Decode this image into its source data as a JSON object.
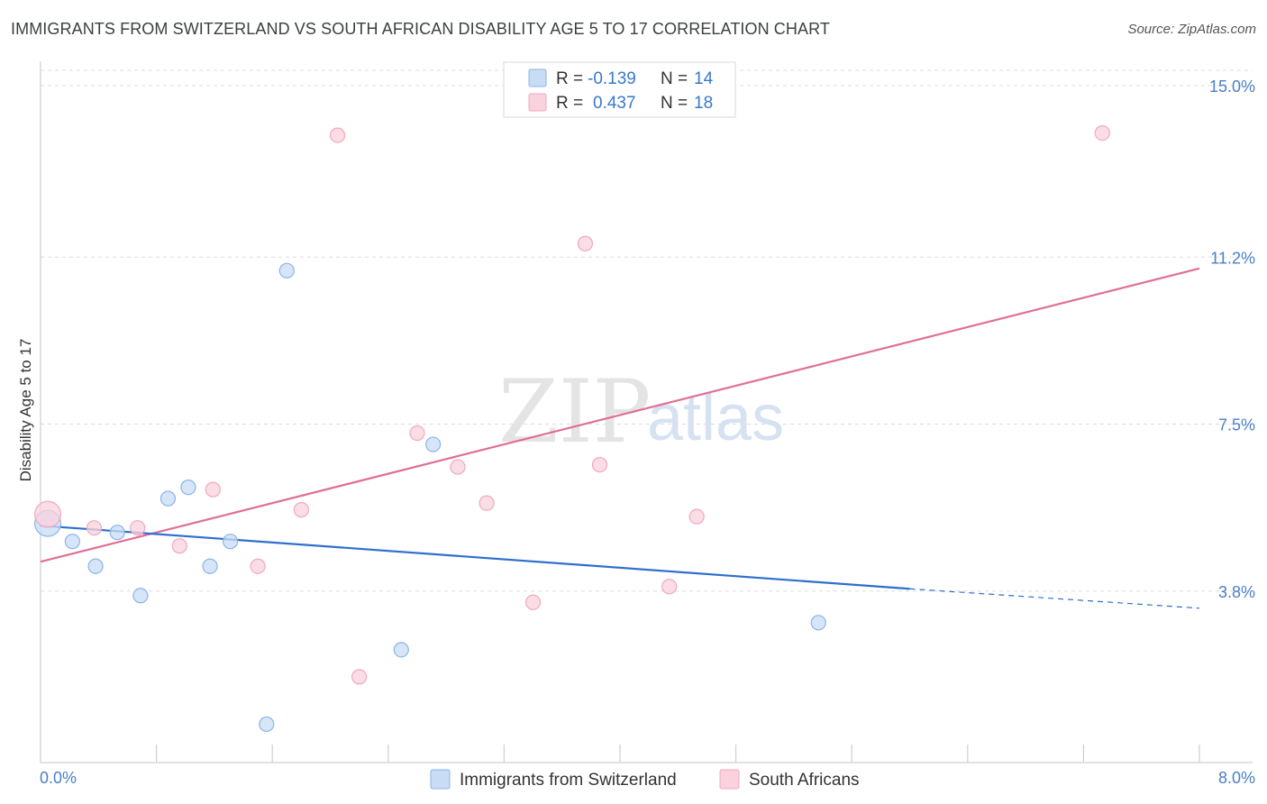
{
  "header": {
    "title": "IMMIGRANTS FROM SWITZERLAND VS SOUTH AFRICAN DISABILITY AGE 5 TO 17 CORRELATION CHART",
    "source": "Source: ZipAtlas.com"
  },
  "chart_data": {
    "type": "scatter",
    "title": "IMMIGRANTS FROM SWITZERLAND VS SOUTH AFRICAN DISABILITY AGE 5 TO 17 CORRELATION CHART",
    "xlabel": "",
    "ylabel": "Disability Age 5 to 17",
    "xlim": [
      0.0,
      8.0
    ],
    "ylim": [
      0.0,
      15.5
    ],
    "x_tick_labels": {
      "min": "0.0%",
      "max": "8.0%"
    },
    "y_ticks": [
      {
        "value": 3.8,
        "label": "3.8%"
      },
      {
        "value": 7.5,
        "label": "7.5%"
      },
      {
        "value": 11.2,
        "label": "11.2%"
      },
      {
        "value": 15.0,
        "label": "15.0%"
      }
    ],
    "grid": true,
    "watermark": {
      "zip": "ZIP",
      "atlas": "atlas"
    },
    "legend": {
      "placement": "top-center",
      "rows": [
        {
          "r_label": "R =",
          "r_value": "-0.139",
          "n_label": "N =",
          "n_value": "14"
        },
        {
          "r_label": "R =",
          "r_value": "0.437",
          "n_label": "N =",
          "n_value": "18"
        }
      ]
    },
    "series": [
      {
        "name": "Immigrants from Switzerland",
        "color": "#8ab4e8",
        "fill": "#c9dcf5",
        "line_color": "#2f6fce",
        "points": [
          [
            0.05,
            5.3,
            1.8
          ],
          [
            0.22,
            4.9,
            1
          ],
          [
            0.38,
            4.35,
            1
          ],
          [
            0.53,
            5.1,
            1
          ],
          [
            0.69,
            3.7,
            1
          ],
          [
            0.88,
            5.85,
            1
          ],
          [
            1.02,
            6.1,
            1
          ],
          [
            1.17,
            4.35,
            1
          ],
          [
            1.31,
            4.9,
            1
          ],
          [
            1.7,
            10.9,
            1
          ],
          [
            1.56,
            0.85,
            1
          ],
          [
            2.49,
            2.5,
            1
          ],
          [
            2.71,
            7.05,
            1
          ],
          [
            5.37,
            3.1,
            1
          ]
        ],
        "trend": {
          "x0": 0.0,
          "y0": 5.25,
          "x1": 6.0,
          "y1": 3.85,
          "x_dash_end": 8.0,
          "y_dash_end": 3.42
        }
      },
      {
        "name": "South Africans",
        "color": "#f2a7bd",
        "fill": "#f9d2dd",
        "line_color": "#e06f95",
        "points": [
          [
            0.05,
            5.5,
            1.8
          ],
          [
            0.37,
            5.2,
            1
          ],
          [
            0.67,
            5.2,
            1
          ],
          [
            0.96,
            4.8,
            1
          ],
          [
            1.19,
            6.05,
            1
          ],
          [
            1.5,
            4.35,
            1
          ],
          [
            1.8,
            5.6,
            1
          ],
          [
            2.05,
            13.9,
            1
          ],
          [
            2.2,
            1.9,
            1
          ],
          [
            2.6,
            7.3,
            1
          ],
          [
            2.88,
            6.55,
            1
          ],
          [
            3.08,
            5.75,
            1
          ],
          [
            3.4,
            3.55,
            1
          ],
          [
            3.76,
            11.5,
            1
          ],
          [
            3.86,
            6.6,
            1
          ],
          [
            4.34,
            3.9,
            1
          ],
          [
            4.53,
            5.45,
            1
          ],
          [
            7.33,
            13.95,
            1
          ]
        ],
        "trend": {
          "x0": 0.0,
          "y0": 4.45,
          "x1": 8.0,
          "y1": 10.95
        }
      }
    ]
  }
}
